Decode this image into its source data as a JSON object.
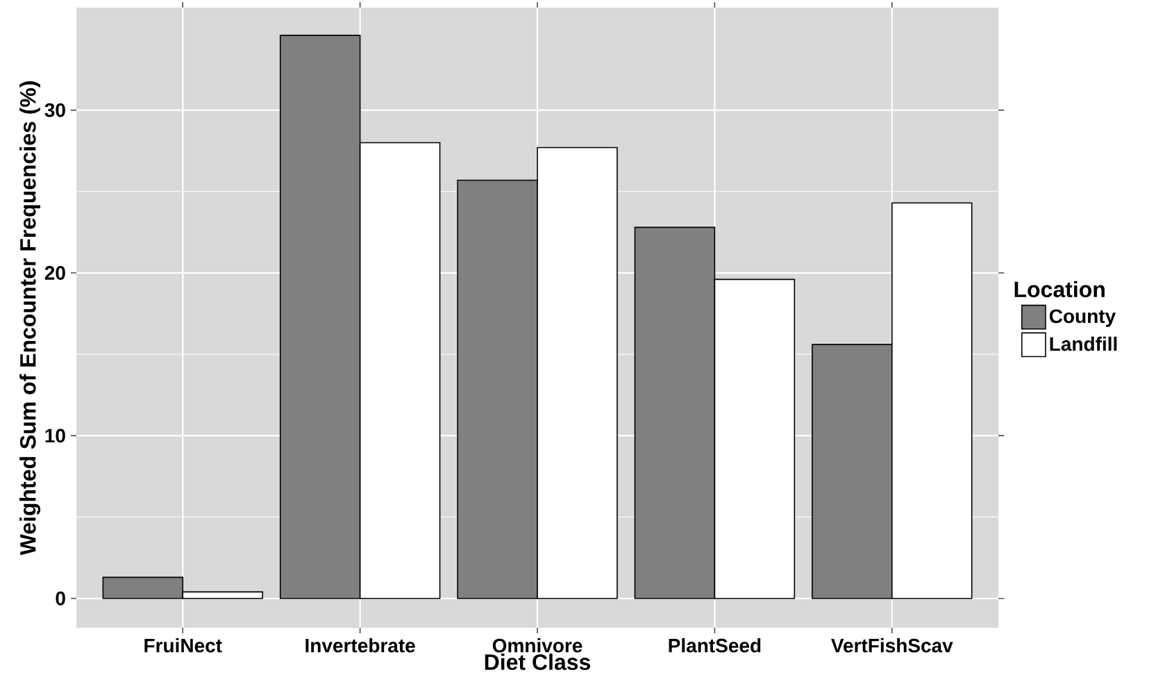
{
  "chart_data": {
    "type": "bar",
    "xlabel": "Diet Class",
    "ylabel": "Weighted Sum of Encounter Frequencies (%)",
    "legend_title": "Location",
    "categories": [
      "FruiNect",
      "Invertebrate",
      "Omnivore",
      "PlantSeed",
      "VertFishScav"
    ],
    "series": [
      {
        "name": "County",
        "color": "#808080",
        "values": [
          1.3,
          34.6,
          25.7,
          22.8,
          15.6
        ]
      },
      {
        "name": "Landfill",
        "color": "#ffffff",
        "values": [
          0.4,
          28.0,
          27.7,
          19.6,
          24.3
        ]
      }
    ],
    "ylim": [
      -1.8,
      36.3
    ],
    "yticks": [
      0,
      10,
      20,
      30
    ],
    "grid": true,
    "legend": "right"
  }
}
